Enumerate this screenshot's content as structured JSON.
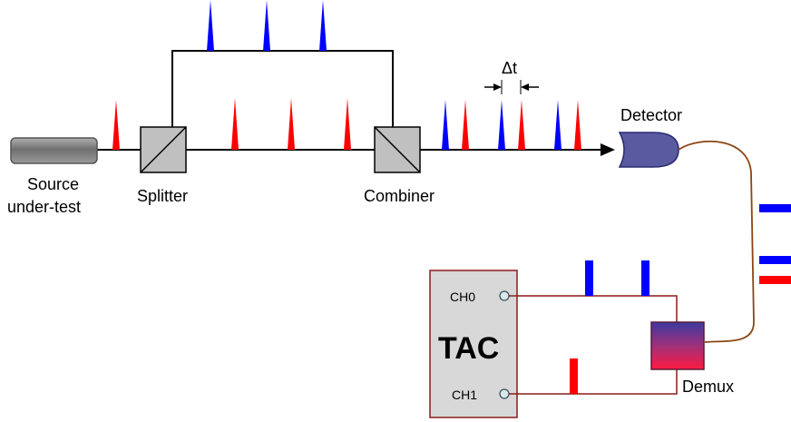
{
  "labels": {
    "source": [
      "Source",
      "under-test"
    ],
    "splitter": "Splitter",
    "combiner": "Combiner",
    "detector": "Detector",
    "delay": "Δt",
    "tac": "TAC",
    "ch0": "CH0",
    "ch1": "CH1",
    "demux": "Demux"
  },
  "colors": {
    "blue_pulse": "#0000ff",
    "red_pulse": "#ff0000",
    "component_gray": "#c0c0c0",
    "source_gray": "#808080",
    "detector": "#5a5aa0",
    "fiber": "#8b4513",
    "wire": "#8b1a1a",
    "tac_fill": "#d8d8d8"
  },
  "icons": {
    "source": "laser-source-icon",
    "splitter": "beam-splitter-icon",
    "combiner": "beam-combiner-icon",
    "detector": "photodetector-icon",
    "demux": "demultiplexer-icon"
  }
}
